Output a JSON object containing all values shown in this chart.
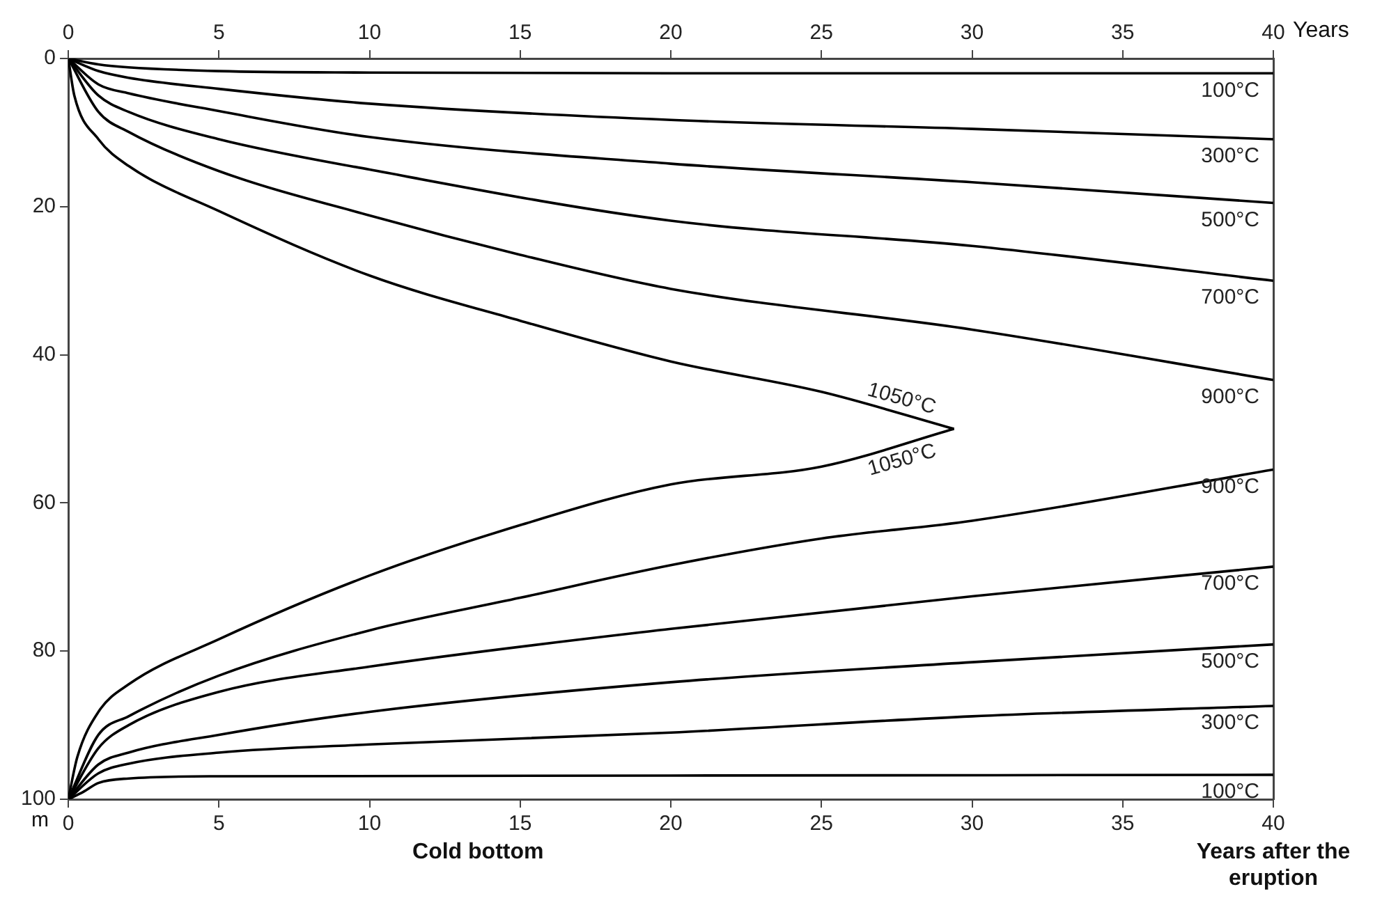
{
  "chart_data": {
    "type": "line",
    "xlabel": "Years after the eruption",
    "x2label": "Years",
    "ylabel": "m",
    "annotations": [
      "Cold bottom"
    ],
    "xlim": [
      0,
      40
    ],
    "xticks": [
      0,
      5,
      10,
      15,
      20,
      25,
      30,
      35,
      40
    ],
    "x2lim": [
      0,
      40
    ],
    "x2ticks": [
      0,
      5,
      10,
      15,
      20,
      25,
      30,
      35,
      40
    ],
    "ylim": [
      100,
      0
    ],
    "yticks": [
      0,
      20,
      40,
      60,
      80,
      100
    ],
    "grid": false,
    "legend": false,
    "marker": "none",
    "line_style": "solid",
    "series": [
      {
        "name": "100°C",
        "color": "#000000",
        "x": [
          0,
          1,
          2,
          5,
          10,
          20,
          40
        ],
        "values": [
          0,
          0.8,
          1.2,
          1.7,
          1.9,
          2.0,
          2.0
        ]
      },
      {
        "name": "300°C",
        "color": "#000000",
        "x": [
          0,
          1,
          2,
          5,
          10,
          20,
          30,
          40
        ],
        "values": [
          0,
          1.7,
          2.6,
          4.1,
          6.1,
          8.3,
          9.5,
          10.9
        ]
      },
      {
        "name": "500°C",
        "color": "#000000",
        "x": [
          0,
          1,
          2,
          5,
          10,
          20,
          30,
          40
        ],
        "values": [
          0,
          3.5,
          4.7,
          7.1,
          10.6,
          14.2,
          16.7,
          19.5
        ]
      },
      {
        "name": "700°C",
        "color": "#000000",
        "x": [
          0,
          1,
          2,
          5,
          10,
          20,
          30,
          40
        ],
        "values": [
          0,
          5.0,
          7.2,
          10.9,
          15.0,
          21.9,
          25.3,
          30.0
        ]
      },
      {
        "name": "900°C",
        "color": "#000000",
        "x": [
          0,
          1,
          2,
          5,
          10,
          15,
          20,
          30,
          40
        ],
        "values": [
          0,
          7.2,
          9.9,
          15.2,
          21.2,
          26.5,
          31.1,
          36.6,
          43.4
        ]
      },
      {
        "name": "1050°C",
        "color": "#000000",
        "x": [
          0,
          0.2,
          1,
          2,
          5,
          10,
          15,
          20,
          25,
          29.4
        ],
        "values": [
          0,
          5,
          10.9,
          14.5,
          20.6,
          29.3,
          35.4,
          40.9,
          45.0,
          50
        ]
      },
      {
        "name": "1050°C",
        "color": "#000000",
        "x": [
          0,
          0.3,
          1,
          2,
          5,
          10,
          15,
          20,
          25,
          29.4
        ],
        "values": [
          100,
          94.3,
          88.2,
          84.5,
          78.4,
          69.8,
          63.0,
          57.5,
          55.1,
          50
        ]
      },
      {
        "name": "900°C",
        "color": "#000000",
        "x": [
          0,
          1,
          2,
          5,
          10,
          15,
          20,
          25,
          30,
          40
        ],
        "values": [
          100,
          91.3,
          88.8,
          83.3,
          77.2,
          72.8,
          68.4,
          64.8,
          62.4,
          55.5
        ]
      },
      {
        "name": "700°C",
        "color": "#000000",
        "x": [
          0,
          1,
          2,
          5,
          10,
          20,
          30,
          40
        ],
        "values": [
          100,
          93.1,
          90,
          85.5,
          82.1,
          77.0,
          72.6,
          68.6
        ]
      },
      {
        "name": "500°C",
        "color": "#000000",
        "x": [
          0,
          1,
          2,
          5,
          10,
          20,
          30,
          40
        ],
        "values": [
          100,
          95.3,
          93.7,
          91.3,
          88.2,
          84.2,
          81.5,
          79.1
        ]
      },
      {
        "name": "300°C",
        "color": "#000000",
        "x": [
          0,
          1,
          2,
          5,
          10,
          20,
          30,
          40
        ],
        "values": [
          100,
          96.5,
          95.2,
          93.7,
          92.6,
          91.0,
          88.8,
          87.4
        ]
      },
      {
        "name": "100°C",
        "color": "#000000",
        "x": [
          0,
          0.5,
          1,
          2,
          5,
          20,
          40
        ],
        "values": [
          100,
          99,
          97.8,
          97.2,
          96.9,
          96.8,
          96.7
        ]
      }
    ]
  }
}
